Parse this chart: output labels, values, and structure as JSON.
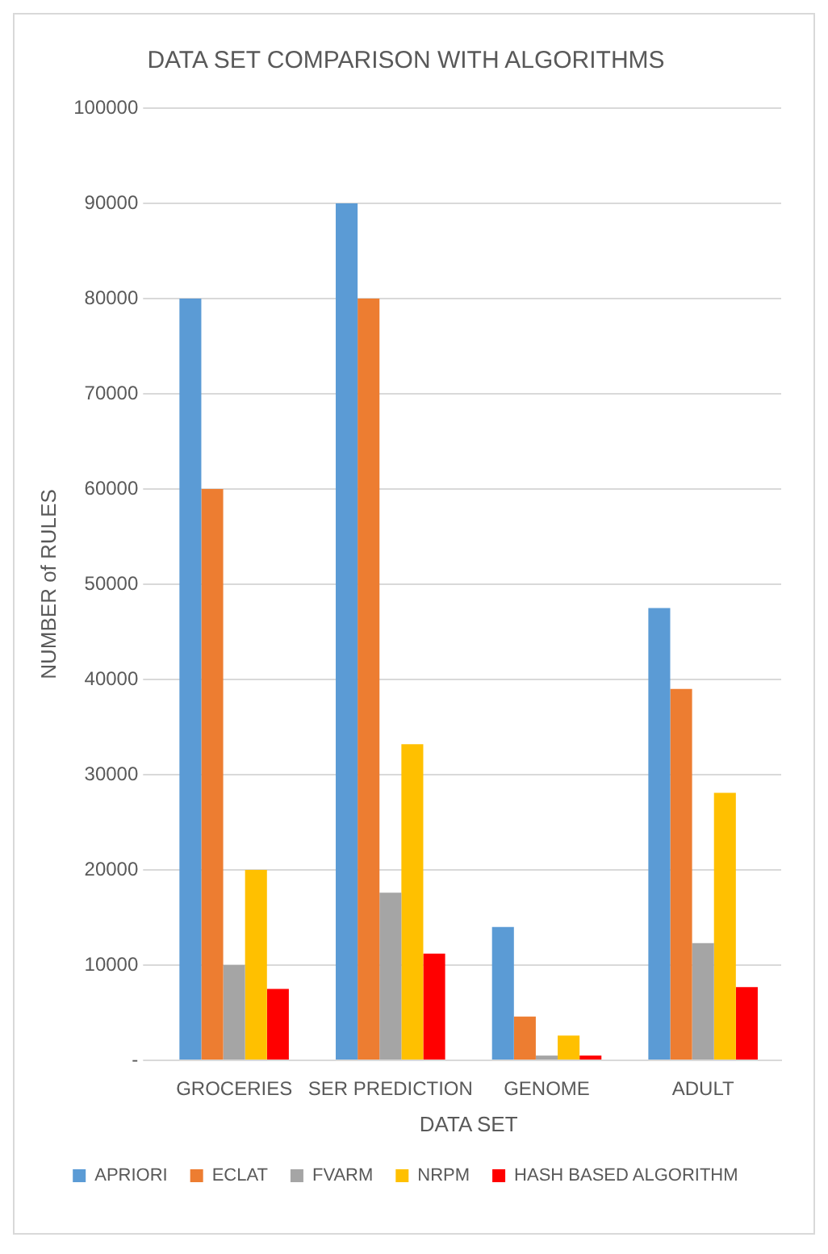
{
  "chart_data": {
    "type": "bar",
    "title": "DATA SET COMPARISON WITH ALGORITHMS",
    "xlabel": "DATA SET",
    "ylabel": "NUMBER of RULES",
    "categories": [
      "GROCERIES",
      "SER PREDICTION",
      "GENOME",
      "ADULT"
    ],
    "series": [
      {
        "name": "APRIORI",
        "color": "#5b9bd5",
        "values": [
          80000,
          90000,
          14000,
          47500
        ]
      },
      {
        "name": "ECLAT",
        "color": "#ed7d31",
        "values": [
          60000,
          80000,
          4600,
          39000
        ]
      },
      {
        "name": "FVARM",
        "color": "#a5a5a5",
        "values": [
          10000,
          17600,
          500,
          12300
        ]
      },
      {
        "name": "NRPM",
        "color": "#ffc000",
        "values": [
          20000,
          33200,
          2600,
          28100
        ]
      },
      {
        "name": "HASH BASED ALGORITHM",
        "color": "#ff0000",
        "values": [
          7500,
          11200,
          500,
          7700
        ]
      }
    ],
    "ylim": [
      0,
      100000
    ],
    "yticks": [
      {
        "value": 0,
        "label": "-"
      },
      10000,
      20000,
      30000,
      40000,
      50000,
      60000,
      70000,
      80000,
      90000,
      100000
    ],
    "grid": "y",
    "legend": "bottom"
  }
}
